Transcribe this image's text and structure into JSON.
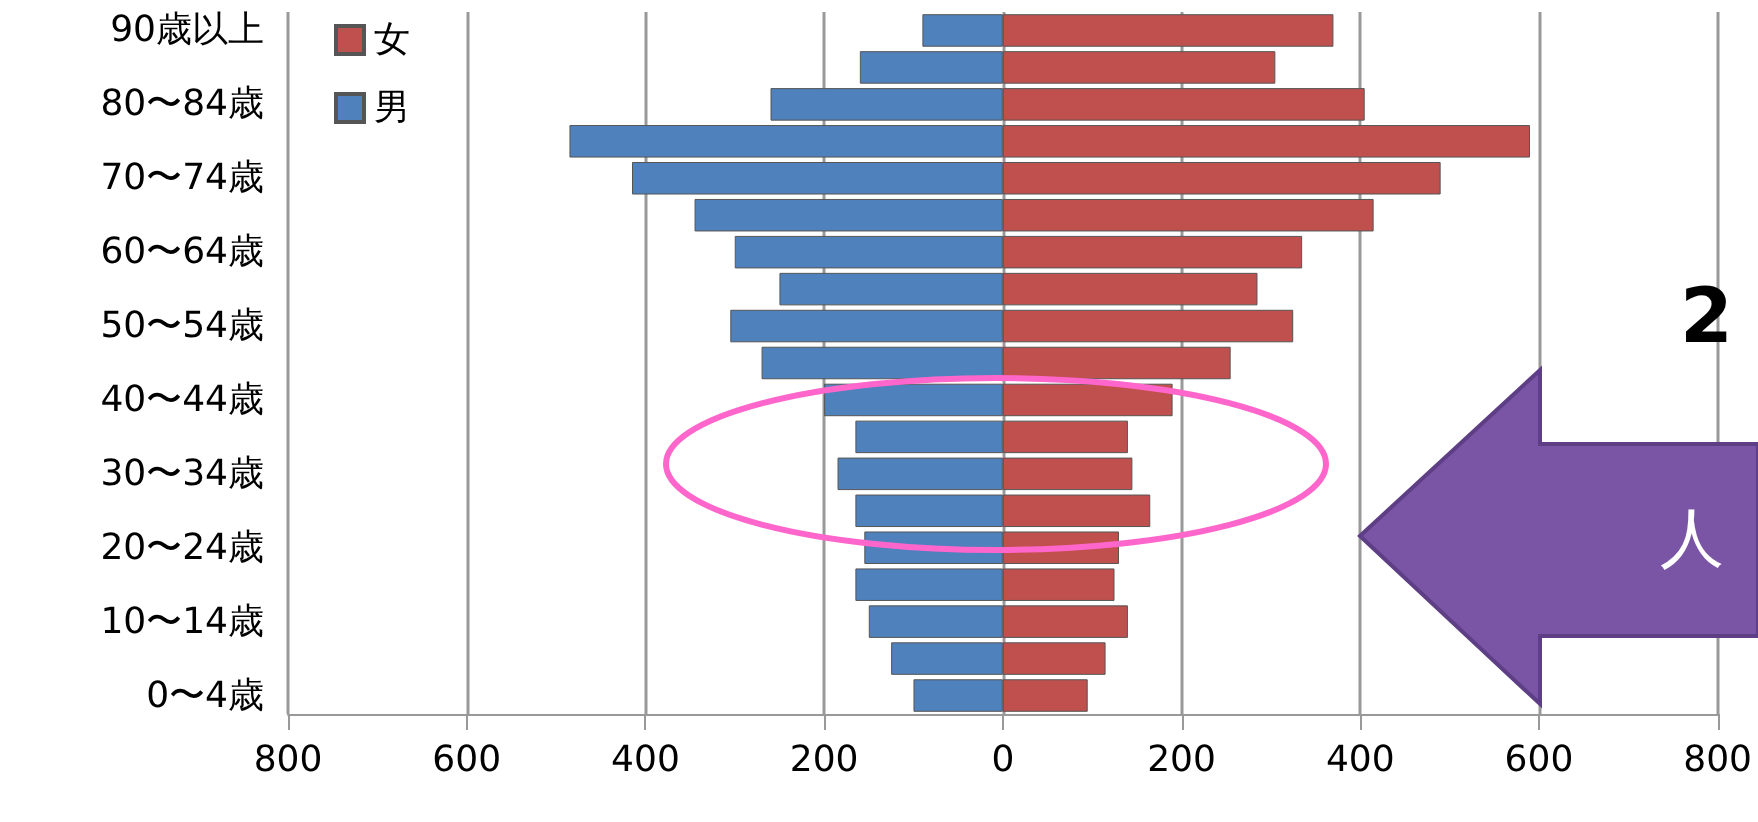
{
  "chart_data": {
    "type": "bar",
    "orientation": "horizontal",
    "stacked": true,
    "categories": [
      "90歳以上",
      null,
      "80〜84歳",
      null,
      "70〜74歳",
      null,
      "60〜64歳",
      null,
      "50〜54歳",
      null,
      "40〜44歳",
      null,
      "30〜34歳",
      null,
      "20〜24歳",
      null,
      "10〜14歳",
      null,
      "0〜4歳"
    ],
    "series": [
      {
        "name": "女",
        "color": "#c0504d",
        "values": [
          370,
          305,
          405,
          590,
          490,
          415,
          335,
          285,
          325,
          255,
          190,
          140,
          145,
          165,
          130,
          125,
          140,
          115,
          95
        ]
      },
      {
        "name": "男",
        "color": "#4f81bd",
        "values": [
          -90,
          -160,
          -260,
          -485,
          -415,
          -345,
          -300,
          -250,
          -305,
          -270,
          -200,
          -165,
          -185,
          -165,
          -155,
          -165,
          -150,
          -125,
          -100
        ]
      }
    ],
    "xlim": [
      -800,
      800
    ],
    "xticks": [
      {
        "value": -800,
        "label": "800"
      },
      {
        "value": -600,
        "label": "600"
      },
      {
        "value": -400,
        "label": "400"
      },
      {
        "value": -200,
        "label": "200"
      },
      0,
      200,
      400,
      600,
      800
    ],
    "grid": "x",
    "legend": "top left",
    "annotations": [
      "2",
      "人"
    ]
  }
}
